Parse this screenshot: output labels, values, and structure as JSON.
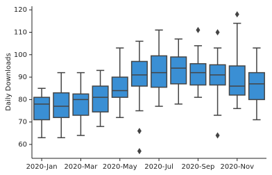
{
  "chart_data": {
    "type": "box",
    "y_label": "Daily Downloads",
    "categories": [
      "2020-Jan",
      null,
      "2020-Mar",
      null,
      "2020-May",
      null,
      "2020-Jul",
      null,
      "2020-Sep",
      null,
      "2020-Nov",
      null
    ],
    "whisker_low": [
      63,
      63,
      64,
      68,
      72,
      75,
      77,
      78,
      81,
      73,
      76,
      71
    ],
    "q1": [
      71,
      72,
      73,
      74.5,
      81,
      86,
      85.5,
      87,
      86.5,
      86.5,
      82,
      80
    ],
    "median": [
      78,
      77,
      80,
      81,
      84,
      91,
      92,
      94,
      92,
      91,
      86,
      87
    ],
    "q3": [
      81,
      83,
      82.5,
      86,
      90,
      97,
      99.5,
      99,
      96,
      95.5,
      95,
      92
    ],
    "whisker_high": [
      85,
      92,
      92,
      93,
      103,
      106,
      111,
      107,
      104,
      103,
      114,
      103
    ],
    "outliers": [
      [],
      [],
      [],
      [],
      [],
      [
        66,
        57
      ],
      [],
      [],
      [
        111
      ],
      [
        110,
        64
      ],
      [
        118
      ],
      []
    ],
    "color": "#3a8fd4",
    "ylim": [
      53.8,
      121.6
    ],
    "yticks": [
      60,
      70,
      80,
      90,
      100,
      110,
      120
    ]
  }
}
